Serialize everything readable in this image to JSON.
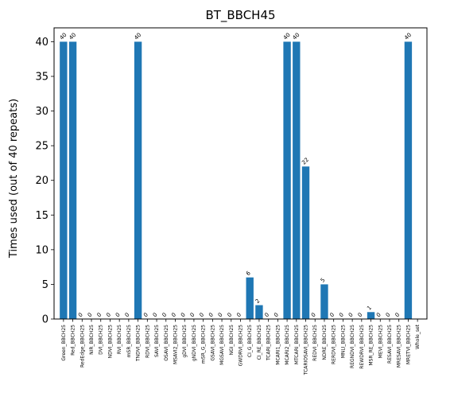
{
  "chart_data": {
    "type": "bar",
    "title": "BT_BBCH45",
    "xlabel": "",
    "ylabel": "Times used (out of 40 repeats)",
    "ylim": [
      0,
      42
    ],
    "yticks": [
      0,
      5,
      10,
      15,
      20,
      25,
      30,
      35,
      40
    ],
    "grid": false,
    "bar_color": "#1f77b4",
    "categories": [
      "Green_BBCH25",
      "Red_BBCH25",
      "RedEdge_BBCH25",
      "NIR_BBCH25",
      "DVI_BBCH25",
      "NDVI_BBCH25",
      "RVI_BBCH25",
      "mSR_BBCH25",
      "TNDVI_BBCH25",
      "RDVI_BBCH25",
      "SAVI_BBCH25",
      "OSAVI_BBCH25",
      "MSAVI2_BBCH25",
      "gDVI_BBCH25",
      "gNDVI_BBCH25",
      "mSR_G_BBCH25",
      "GSAVI_BBCH25",
      "MGSAVI_BBCH25",
      "NGI_BBCH25",
      "GWDRVI_BBCH25",
      "CI_G_BBCH25",
      "CI_RE_BBCH25",
      "TCARI_BBCH25",
      "MCARI1_BBCH25",
      "MCARI2_BBCH25",
      "MTCARI_BBCH25",
      "TCARIOSAVI_BBCH25",
      "REDVI_BBCH25",
      "NDRE_BBCH25",
      "RERDVI_BBCH25",
      "MNLI_BBCH25",
      "REGNDVI_BBCH25",
      "REWDRVI_BBCH25",
      "MSR_RE_BBCH25",
      "MEVI_BBCH25",
      "RESAVI_BBCH25",
      "MRESAVI_BBCH25",
      "MRETVI_BBCH25",
      "Whole_set"
    ],
    "values": [
      40,
      40,
      0,
      0,
      0,
      0,
      0,
      0,
      40,
      0,
      0,
      0,
      0,
      0,
      0,
      0,
      0,
      0,
      0,
      0,
      6,
      2,
      0,
      0,
      40,
      40,
      22,
      0,
      5,
      0,
      0,
      0,
      0,
      1,
      0,
      0,
      0,
      40,
      0
    ],
    "value_labels": [
      "40",
      "40",
      "0",
      "0",
      "0",
      "0",
      "0",
      "0",
      "40",
      "0",
      "0",
      "0",
      "0",
      "0",
      "0",
      "0",
      "0",
      "0",
      "0",
      "0",
      "6",
      "2",
      "0",
      "0",
      "40",
      "40",
      "22",
      "0",
      "5",
      "0",
      "0",
      "0",
      "0",
      "1",
      "0",
      "0",
      "0",
      "40",
      ""
    ]
  }
}
